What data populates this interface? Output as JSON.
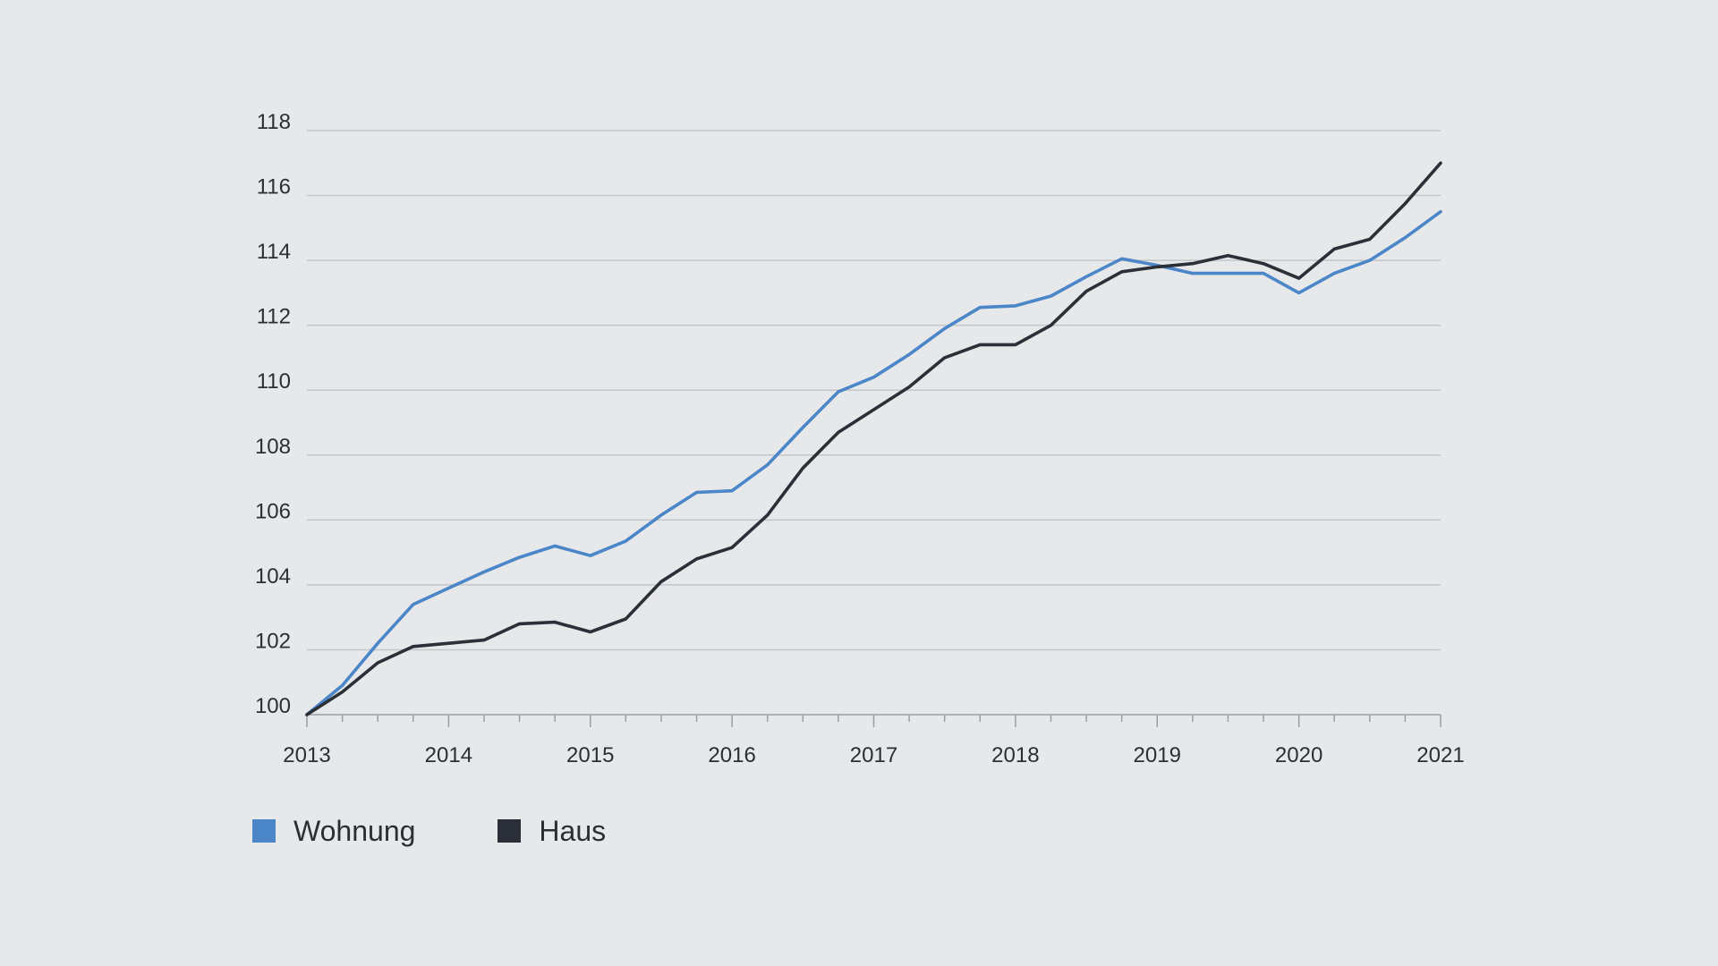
{
  "chart_data": {
    "type": "line",
    "title": "",
    "xlabel": "",
    "ylabel": "",
    "xlim": [
      2013,
      2021
    ],
    "ylim": [
      100,
      118
    ],
    "x_ticks": [
      "2013",
      "2014",
      "2015",
      "2016",
      "2017",
      "2018",
      "2019",
      "2020",
      "2021"
    ],
    "y_ticks": [
      "100",
      "102",
      "104",
      "106",
      "108",
      "110",
      "112",
      "114",
      "116",
      "118"
    ],
    "grid": true,
    "legend_position": "bottom-left",
    "x": [
      2013.0,
      2013.25,
      2013.5,
      2013.75,
      2014.0,
      2014.25,
      2014.5,
      2014.75,
      2015.0,
      2015.25,
      2015.5,
      2015.75,
      2016.0,
      2016.25,
      2016.5,
      2016.75,
      2017.0,
      2017.25,
      2017.5,
      2017.75,
      2018.0,
      2018.25,
      2018.5,
      2018.75,
      2019.0,
      2019.25,
      2019.5,
      2019.75,
      2020.0,
      2020.25,
      2020.5,
      2020.75,
      2021.0
    ],
    "series": [
      {
        "name": "Wohnung",
        "color": "#4a86c8",
        "values": [
          100.0,
          100.9,
          102.2,
          103.4,
          103.9,
          104.4,
          104.85,
          105.2,
          104.9,
          105.35,
          106.15,
          106.85,
          106.9,
          107.7,
          108.85,
          109.95,
          110.4,
          111.1,
          111.9,
          112.55,
          112.6,
          112.9,
          113.5,
          114.05,
          113.85,
          113.6,
          113.6,
          113.6,
          113.0,
          113.6,
          114.0,
          114.7,
          115.5
        ]
      },
      {
        "name": "Haus",
        "color": "#2b3038",
        "values": [
          100.0,
          100.7,
          101.6,
          102.1,
          102.2,
          102.3,
          102.8,
          102.85,
          102.55,
          102.95,
          104.1,
          104.8,
          105.15,
          106.15,
          107.6,
          108.7,
          109.4,
          110.1,
          111.0,
          111.4,
          111.4,
          112.0,
          113.05,
          113.65,
          113.8,
          113.9,
          114.15,
          113.9,
          113.45,
          114.35,
          114.65,
          115.75,
          117.0
        ]
      }
    ]
  },
  "colors": {
    "background": "#e7e8ea",
    "grid": "#c3c6ca",
    "axis": "#9a9ea3",
    "text": "#2b2f33"
  }
}
